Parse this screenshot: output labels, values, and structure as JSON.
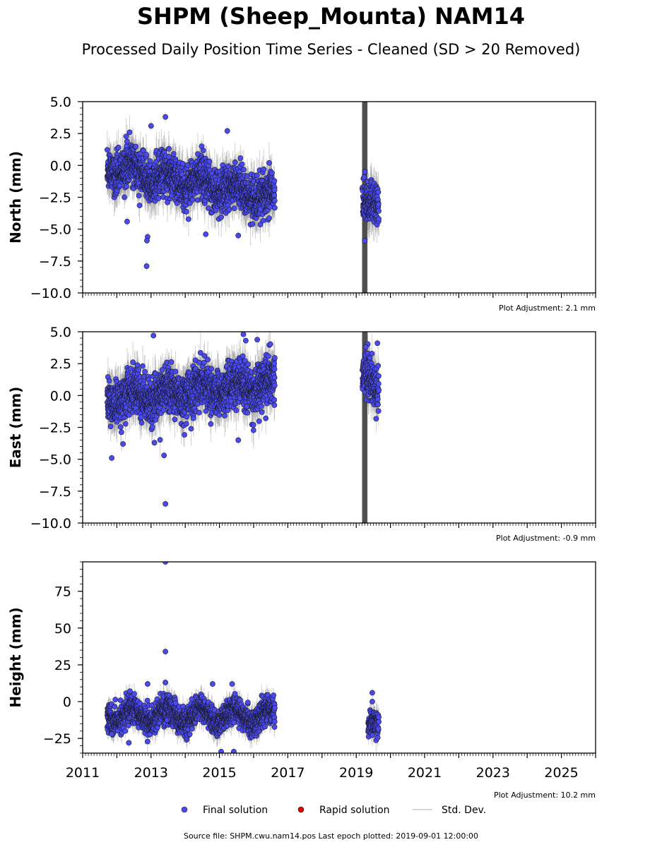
{
  "title": "SHPM (Sheep_Mounta) NAM14",
  "subtitle": "Processed Daily Position Time Series - Cleaned (SD > 20 Removed)",
  "chart_data": [
    {
      "type": "scatter",
      "panel": "north",
      "ylabel": "North (mm)",
      "xlim": [
        2011,
        2026
      ],
      "ylim": [
        -10,
        5
      ],
      "yticks": [
        "5.0",
        "2.5",
        "0.0",
        "−2.5",
        "−5.0",
        "−7.5",
        "−10.0"
      ],
      "adjustment": "Plot Adjustment: 2.1 mm",
      "segments": [
        {
          "start": 2011.72,
          "end": 2016.62,
          "mean_start": 0.0,
          "mean_end": -2.6,
          "seasonal_amp": 0.5,
          "noise": 0.8,
          "sd": 1.3
        },
        {
          "start": 2019.18,
          "end": 2019.66,
          "mean_start": -3.0,
          "mean_end": -3.4,
          "seasonal_amp": 0.3,
          "noise": 0.8,
          "sd": 1.3
        }
      ],
      "outliers": [
        {
          "x": 2012.87,
          "y": -7.9
        },
        {
          "x": 2012.9,
          "y": -5.6
        },
        {
          "x": 2012.88,
          "y": -5.9
        },
        {
          "x": 2012.3,
          "y": -4.4
        },
        {
          "x": 2013.42,
          "y": 3.8
        },
        {
          "x": 2013.0,
          "y": 3.1
        },
        {
          "x": 2015.23,
          "y": 2.7
        },
        {
          "x": 2014.48,
          "y": 1.5
        },
        {
          "x": 2014.6,
          "y": -5.4
        },
        {
          "x": 2015.55,
          "y": -5.5
        },
        {
          "x": 2019.25,
          "y": -5.9
        }
      ],
      "wide_sd_band": {
        "start": 2019.18,
        "end": 2019.32
      }
    },
    {
      "type": "scatter",
      "panel": "east",
      "ylabel": "East (mm)",
      "xlim": [
        2011,
        2026
      ],
      "ylim": [
        -10,
        5
      ],
      "yticks": [
        "5.0",
        "2.5",
        "0.0",
        "−2.5",
        "−5.0",
        "−7.5",
        "−10.0"
      ],
      "adjustment": "Plot Adjustment: -0.9 mm",
      "segments": [
        {
          "start": 2011.72,
          "end": 2016.62,
          "mean_start": -0.3,
          "mean_end": 0.9,
          "seasonal_amp": 0.5,
          "noise": 0.9,
          "sd": 1.3
        },
        {
          "start": 2019.18,
          "end": 2019.66,
          "mean_start": 1.8,
          "mean_end": 0.2,
          "seasonal_amp": 0.3,
          "noise": 0.8,
          "sd": 1.3
        }
      ],
      "outliers": [
        {
          "x": 2013.07,
          "y": 4.7
        },
        {
          "x": 2015.7,
          "y": 4.8
        },
        {
          "x": 2015.77,
          "y": 4.3
        },
        {
          "x": 2013.42,
          "y": -8.5
        },
        {
          "x": 2013.38,
          "y": -4.7
        },
        {
          "x": 2011.85,
          "y": -4.9
        },
        {
          "x": 2015.55,
          "y": -3.5
        },
        {
          "x": 2019.28,
          "y": 3.8
        },
        {
          "x": 2019.62,
          "y": 4.1
        },
        {
          "x": 2012.18,
          "y": -3.8
        },
        {
          "x": 2013.1,
          "y": -3.7
        }
      ],
      "wide_sd_band": {
        "start": 2019.18,
        "end": 2019.32
      }
    },
    {
      "type": "scatter",
      "panel": "height",
      "ylabel": "Height (mm)",
      "xlim": [
        2011,
        2026
      ],
      "ylim": [
        -35,
        95
      ],
      "yticks": [
        "75",
        "50",
        "25",
        "0",
        "−25"
      ],
      "ytick_values": [
        75,
        50,
        25,
        0,
        -25
      ],
      "xticks": [
        "2011",
        "2013",
        "2015",
        "2017",
        "2019",
        "2021",
        "2023",
        "2025"
      ],
      "xtick_values": [
        2011,
        2013,
        2015,
        2017,
        2019,
        2021,
        2023,
        2025
      ],
      "adjustment": "Plot Adjustment: 10.2 mm",
      "segments": [
        {
          "start": 2011.72,
          "end": 2016.62,
          "mean_start": -9,
          "mean_end": -10,
          "seasonal_amp": 5,
          "noise": 4.5,
          "sd": 6
        },
        {
          "start": 2019.35,
          "end": 2019.66,
          "mean_start": -18,
          "mean_end": -14,
          "seasonal_amp": 2,
          "noise": 4.5,
          "sd": 6
        }
      ],
      "outliers": [
        {
          "x": 2013.42,
          "y": 95
        },
        {
          "x": 2013.42,
          "y": 34
        },
        {
          "x": 2013.42,
          "y": 13
        },
        {
          "x": 2012.9,
          "y": 12
        },
        {
          "x": 2014.8,
          "y": 12
        },
        {
          "x": 2015.37,
          "y": 12
        },
        {
          "x": 2019.47,
          "y": 6
        },
        {
          "x": 2019.47,
          "y": 0
        },
        {
          "x": 2015.05,
          "y": -34
        },
        {
          "x": 2015.42,
          "y": -34
        },
        {
          "x": 2011.85,
          "y": -22
        },
        {
          "x": 2012.35,
          "y": -28
        }
      ]
    }
  ],
  "legend": {
    "final_label": "Final solution",
    "rapid_label": "Rapid solution",
    "sd_label": "Std. Dev.",
    "final_color": "#4a4af0",
    "rapid_color": "#dd0000",
    "sd_color": "#c8c8c8",
    "placement": "bottom-center"
  },
  "source": "Source file: SHPM.cwu.nam14.pos  Last epoch plotted: 2019-09-01 12:00:00"
}
